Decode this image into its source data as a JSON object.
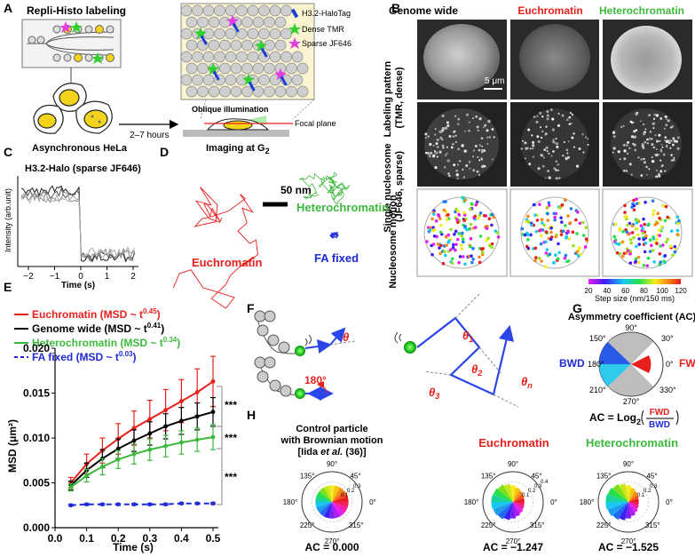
{
  "panels": {
    "A": "A",
    "B": "B",
    "C": "C",
    "D": "D",
    "E": "E",
    "F": "F",
    "G": "G",
    "H": "H"
  },
  "panel_a": {
    "title": "Repli-Histo labeling",
    "cells_label": "Asynchronous HeLa",
    "arrow_label": "2–7 hours",
    "illumination_label": "Oblique illumination",
    "focal_label": "Focal plane",
    "imaging_label": "Imaging at G",
    "imaging_sub": "2",
    "legend": [
      "H3.2-HaloTag",
      "Dense TMR",
      "Sparse JF646"
    ],
    "colors": {
      "halo": "#1e3fd6",
      "tmr": "#2fd12f",
      "jf646": "#e23fe2",
      "cell": "#f3d31c"
    }
  },
  "panel_b": {
    "col_headers": [
      "Genome wide",
      "Euchromatin",
      "Heterochromatin"
    ],
    "col_colors": [
      "#000000",
      "#e8201c",
      "#3cb93c"
    ],
    "row_labels": [
      [
        "Labeling pattern",
        "(TMR, dense)"
      ],
      [
        "Single nucleosome",
        "(JF646, sparse)"
      ],
      [
        "Nucleosome motion"
      ]
    ],
    "scalebar": "5 μm",
    "colorbar_ticks": [
      "20",
      "40",
      "60",
      "80",
      "100",
      "120"
    ],
    "colorbar_label": "Step size (nm/150 ms)"
  },
  "panel_c": {
    "title": "H3.2-Halo (sparse JF646)",
    "ylabel": "Intensity (arb.unit)",
    "xlabel": "Time (s)",
    "xticks": [
      "−2",
      "−1",
      "0",
      "1",
      "2"
    ]
  },
  "panel_d": {
    "scalebar": "50 nm",
    "labels": {
      "eu": "Euchromatin",
      "het": "Heterochromatin",
      "fa": "FA fixed"
    }
  },
  "chart_data": {
    "type": "line",
    "x": [
      0.05,
      0.1,
      0.15,
      0.2,
      0.25,
      0.3,
      0.35,
      0.4,
      0.45,
      0.5
    ],
    "xlabel": "Time (s)",
    "ylabel": "MSD (μm²)",
    "xlim": [
      0,
      0.5
    ],
    "ylim": [
      0,
      0.02
    ],
    "xticks": [
      "0.0",
      "0.1",
      "0.2",
      "0.3",
      "0.4",
      "0.5"
    ],
    "yticks": [
      "0.000",
      "0.005",
      "0.010",
      "0.015",
      "0.020"
    ],
    "series": [
      {
        "name": "Euchromatin (MSD ~ t",
        "exp": "0.45",
        "color": "#e8201c",
        "dash": false,
        "values": [
          0.005,
          0.0071,
          0.0086,
          0.0099,
          0.0111,
          0.0121,
          0.0131,
          0.0141,
          0.0151,
          0.0163
        ],
        "err": [
          0.0006,
          0.0011,
          0.0014,
          0.0017,
          0.0019,
          0.0021,
          0.0023,
          0.0024,
          0.0026,
          0.0028
        ]
      },
      {
        "name": "Genome wide (MSD ~ t",
        "exp": "0.41",
        "color": "#000000",
        "dash": false,
        "values": [
          0.0047,
          0.0064,
          0.0077,
          0.0088,
          0.0097,
          0.0105,
          0.0113,
          0.0119,
          0.0124,
          0.0129
        ],
        "err": [
          0.0005,
          0.0008,
          0.001,
          0.0011,
          0.0012,
          0.0013,
          0.0014,
          0.0015,
          0.0015,
          0.0016
        ]
      },
      {
        "name": "Heterochromatin (MSD ~ t",
        "exp": "0.34",
        "color": "#3cb93c",
        "dash": false,
        "values": [
          0.0045,
          0.0058,
          0.0068,
          0.0076,
          0.0082,
          0.0087,
          0.0091,
          0.0095,
          0.0098,
          0.0101
        ],
        "err": [
          0.0004,
          0.0007,
          0.0009,
          0.001,
          0.0011,
          0.0012,
          0.0012,
          0.0013,
          0.0013,
          0.0014
        ]
      },
      {
        "name": "FA fixed (MSD ~ t",
        "exp": "0.03",
        "color": "#1e2bd6",
        "dash": true,
        "values": [
          0.0025,
          0.0026,
          0.0026,
          0.0026,
          0.0026,
          0.0026,
          0.0026,
          0.0027,
          0.0027,
          0.0027
        ],
        "err": [
          0.0001,
          0.0001,
          0.0001,
          0.0001,
          0.0001,
          0.0001,
          0.0001,
          0.0001,
          0.0001,
          0.0001
        ]
      }
    ],
    "significance": [
      "***",
      "***",
      "***"
    ]
  },
  "panel_f": {
    "angles": [
      "θ",
      "180°",
      "θ",
      "θ",
      "θ",
      "θ"
    ],
    "subs": [
      "",
      "",
      "1",
      "2",
      "3",
      "n"
    ]
  },
  "panel_g": {
    "title": "Asymmetry coefficient (AC)",
    "angles": [
      "90°",
      "30°",
      "0°",
      "330°",
      "270°",
      "210°",
      "180°",
      "150°"
    ],
    "fwd": "FWD",
    "bwd": "BWD",
    "formula_prefix": "AC = Log",
    "formula_sub": "2"
  },
  "panel_h": {
    "control_title": [
      "Control particle",
      "with Brownian motion",
      "[Iida "
    ],
    "control_cite_italic": "et al.",
    "control_cite_end": " (36)]",
    "titles": [
      "Euchromatin",
      "Heterochromatin"
    ],
    "title_colors": [
      "#e8201c",
      "#3cb93c"
    ],
    "angles": [
      "90°",
      "45°",
      "0°",
      "315°",
      "270°",
      "225°",
      "180°",
      "135°"
    ],
    "radial": [
      "0.1",
      "0.2",
      "0.3"
    ],
    "radial_eu": [
      "0.1",
      "0.2",
      "0.3",
      "0.4"
    ],
    "ac_values": [
      "AC = 0.000",
      "AC = −1.247",
      "AC = −1.525"
    ]
  }
}
